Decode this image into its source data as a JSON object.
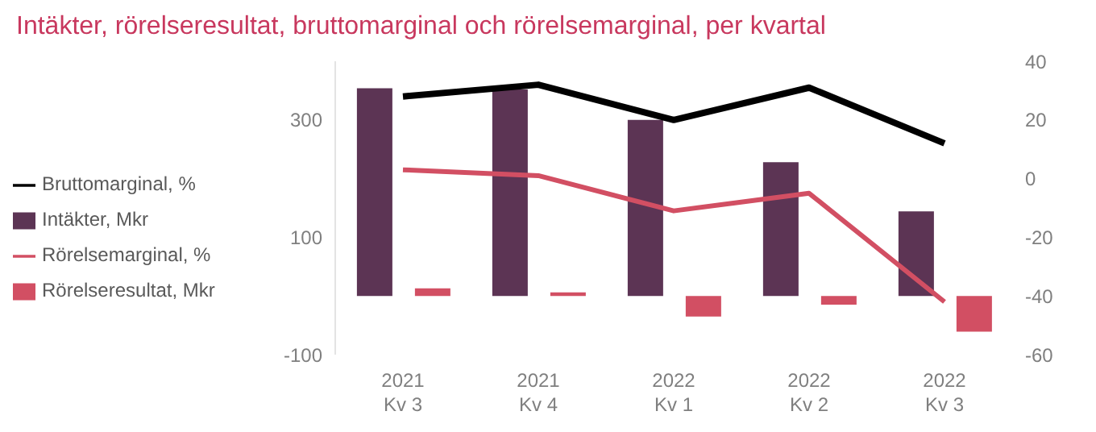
{
  "chart_data": {
    "type": "bar",
    "title": "Intäkter, rörelseresultat, bruttomarginal och rörelsemarginal, per kvartal",
    "categories": [
      "2021\nKv 3",
      "2021\nKv 4",
      "2022\nKv 1",
      "2022\nKv 2",
      "2022\nKv 3"
    ],
    "series": [
      {
        "name": "Intäkter, Mkr",
        "color": "#5c3454",
        "values": [
          354,
          352,
          300,
          228,
          144
        ]
      },
      {
        "name": "Rörelseresultat, Mkr",
        "color": "#d24f63",
        "values": [
          13,
          6,
          -35,
          -15,
          -61
        ]
      },
      {
        "name": "Bruttomarginal, %",
        "type": "line",
        "axis": "y2",
        "color": "#000000",
        "values": [
          28,
          32,
          20,
          31,
          12
        ]
      },
      {
        "name": "Rörelsemarginal, %",
        "type": "line",
        "axis": "y2",
        "color": "#d24f63",
        "values": [
          3,
          1,
          -11,
          -5,
          -42
        ]
      }
    ],
    "ylim": [
      -100,
      400
    ],
    "yticks": [
      -100,
      100,
      300
    ],
    "y2lim": [
      -60,
      40
    ],
    "y2ticks": [
      -60,
      -40,
      -20,
      0,
      20,
      40
    ],
    "legend": "left",
    "grid": false,
    "marker": "none"
  }
}
